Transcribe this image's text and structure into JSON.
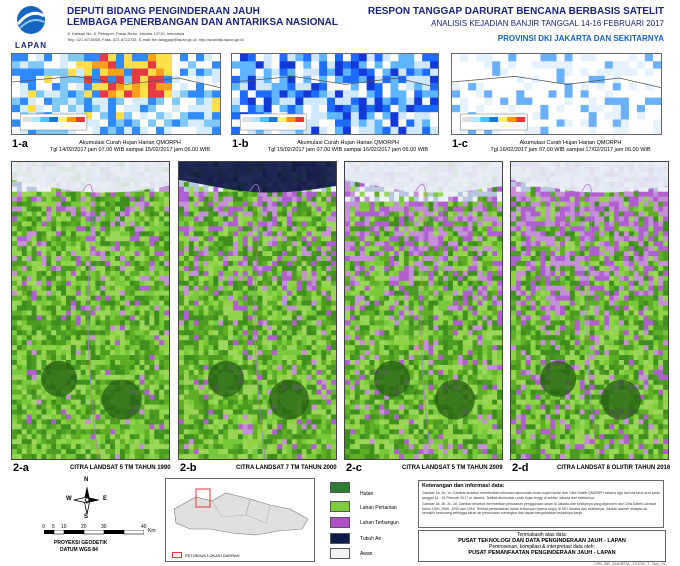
{
  "header": {
    "logo_text": "LAPAN",
    "org_line1": "DEPUTI BIDANG PENGINDERAAN JAUH",
    "org_line2": "LEMBAGA PENERBANGAN DAN ANTARIKSA NASIONAL",
    "address": "Jl. Kalisari No. 8, Pekayon, Pasar Rebo, Jakarta 13710, Indonesia",
    "contact": "Telp. 021 8710065, Faks. 021 8722733, E-mail: tim.tanggap@lapan.go.id, http://pusfatja.lapan.go.id",
    "title": "RESPON TANGGAP DARURAT BENCANA BERBASIS SATELIT",
    "subtitle": "ANALISIS KEJADIAN BANJIR TANGGAL 14-16 FEBRUARI 2017",
    "province": "PROVINSI DKI JAKARTA DAN SEKITARNYA"
  },
  "rain_panels": [
    {
      "tag": "1-a",
      "caption_title": "Akumulasi Curah Hujan Harian QMORPH",
      "caption_date": "Tgl 14/02/2017 jam 07.00 WIB sampai 15/02/2017 jam 06.00 WIB"
    },
    {
      "tag": "1-b",
      "caption_title": "Akumulasi Curah Hujan Harian QMORPH",
      "caption_date": "Tgl 15/02/2017 jam 07.00 WIB sampai 16/02/2017 jam 06.00 WIB"
    },
    {
      "tag": "1-c",
      "caption_title": "Akumulasi Curah Hujan Harian QMORPH",
      "caption_date": "Tgl 16/02/2017 jam 07.00 WIB sampai 17/02/2017 jam 06.00 WIB"
    }
  ],
  "sat_panels": [
    {
      "tag": "2-a",
      "caption": "CITRA LANDSAT 5 TM TAHUN 1990"
    },
    {
      "tag": "2-b",
      "caption": "CITRA LANDSAT 7 TM TAHUN 2000"
    },
    {
      "tag": "2-c",
      "caption": "CITRA LANDSAT 5 TM TAHUN 2009"
    },
    {
      "tag": "2-d",
      "caption": "CITRA LANDSAT 8 OLI/TIR TAHUN 2016"
    }
  ],
  "scale": {
    "ticks": [
      "0",
      "5",
      "10",
      "20",
      "30",
      "40"
    ],
    "unit": "Km",
    "projection": "PROYEKSI GEODETIK",
    "datum": "DATUM WGS 84"
  },
  "compass": {
    "north": "N",
    "south": "S",
    "east": "E",
    "west": "W"
  },
  "inset": {
    "legend": "PETUNJUK LOKASI DAERAH"
  },
  "legend": {
    "items": [
      {
        "label": "Hutan",
        "color": "#2e7d32"
      },
      {
        "label": "Lahan Pertanian",
        "color": "#7ccf3a"
      },
      {
        "label": "Lahan Terbangun",
        "color": "#b04fc8"
      },
      {
        "label": "Tubuh Air",
        "color": "#0d1b4a"
      },
      {
        "label": "Awan",
        "color": "#f2f2f2"
      }
    ]
  },
  "notes": {
    "title": "Keterangan dan informasi data:",
    "line1": "Gambar 1a, 1b, 1c: Gambar tersebut memberikan informasi akumulasi curah hujan harian dari Citra Satelit QMORPH selama tiga hari berturut-turut pada",
    "line2": "tanggal 14 - 16 Februari 2017 di Jakarta. Terlihat akumulasi curah hujan tinggi di sekitar Jakarta dan sekitarnya.",
    "line3": "Gambar 2a, 2b, 2c, 2d: Gambar tersebut memberikan perubahan penggunaan lahan di Jakarta dan sekitarnya yang diperoleh dari Citra Satelit Landsat",
    "line4": "tahun 1990, 2000, 2009 dan 2016. Terlihat pertambahan lahan terbangun (warna ungu) di DKI Jakarta dan sekitarnya. Jumlah daerah resapan air",
    "line5": "semakin berkurang sehingga aliran air permukaan meningkat dan dapat menyebabkan terjadinya banjir.",
    "thanks": "Terimakasih atas data:",
    "pt1": "PUSAT TEKNOLOGI DAN DATA PENGINDERAAN JAUH - LAPAN",
    "pt2": "Pemrosesan, kompilasi & interpretasi data oleh:",
    "pt3": "PUSAT PEMANFAATAN PENGINDERAAN JAUH - LAPAN",
    "code": "LPN_BR_JAKARTA_170220_T_Nov_01"
  }
}
